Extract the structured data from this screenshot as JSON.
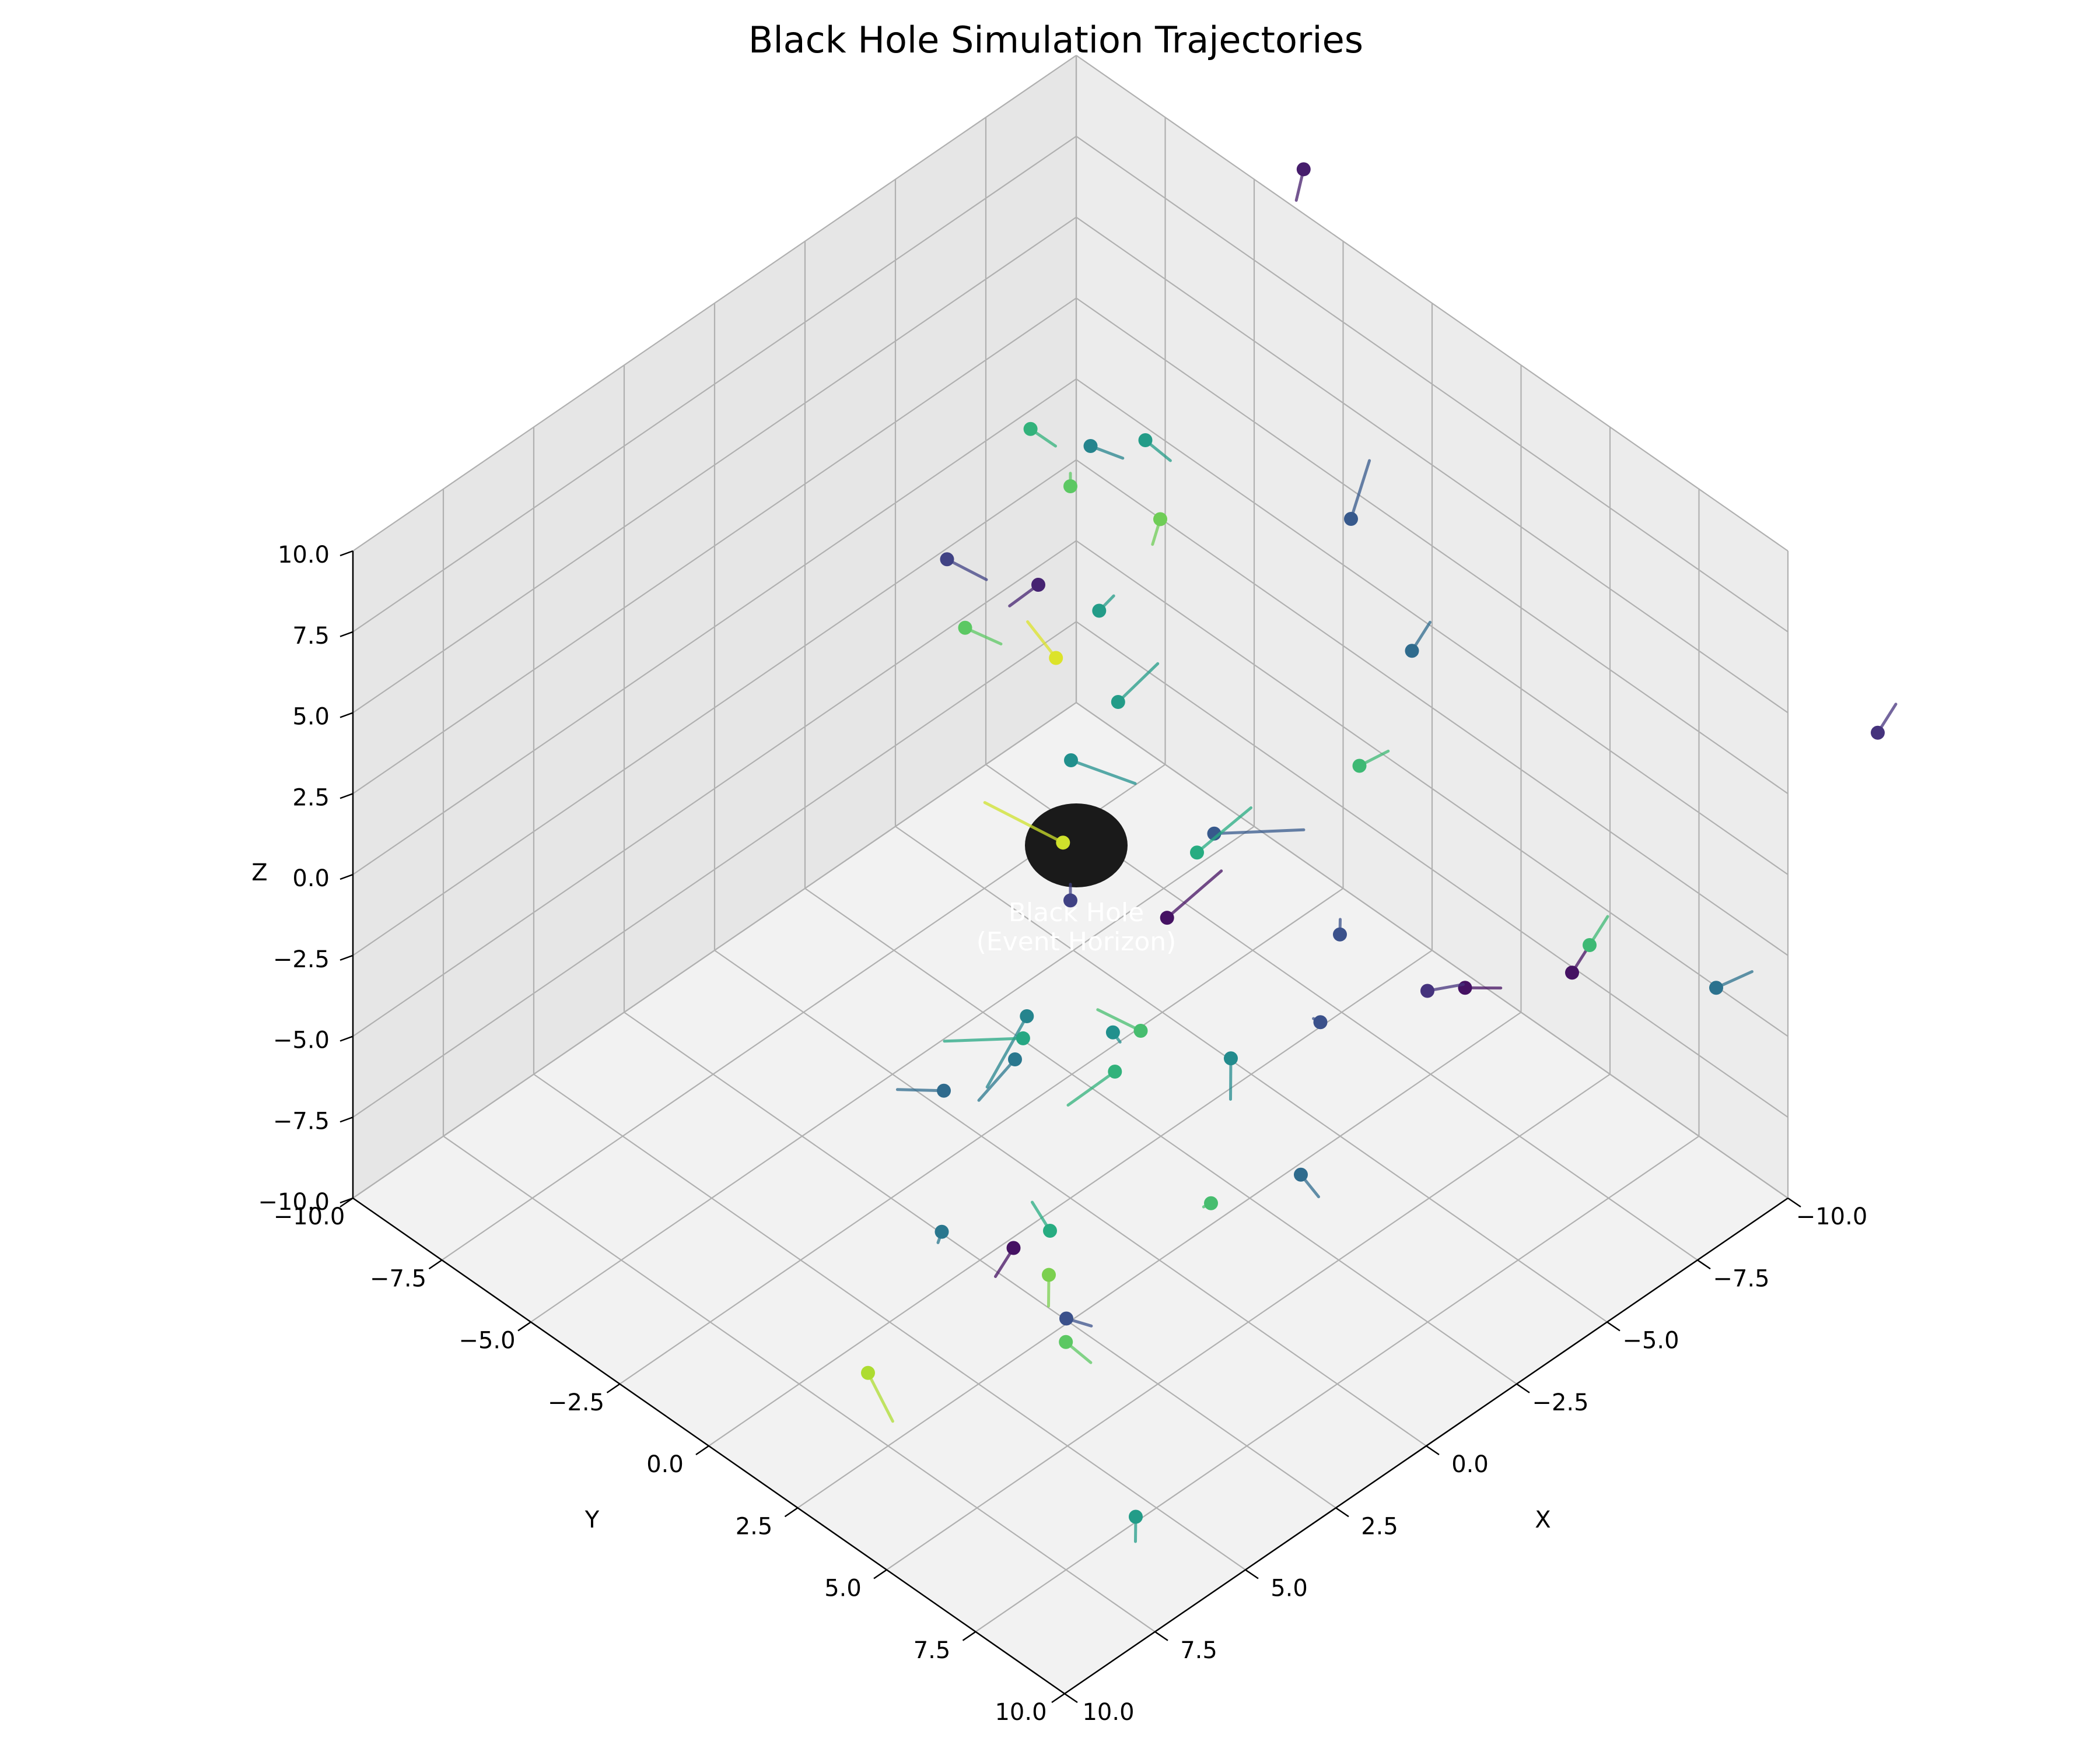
{
  "chart_data": {
    "type": "scatter",
    "projection": "3d",
    "title": "Black Hole Simulation Trajectories",
    "xlabel": "X",
    "ylabel": "Y",
    "zlabel": "Z",
    "xlim": [
      -10,
      10
    ],
    "ylim": [
      -10,
      10
    ],
    "zlim": [
      -10,
      10
    ],
    "x_ticks": [
      "−10.0",
      "−7.5",
      "−5.0",
      "−2.5",
      "0.0",
      "2.5",
      "5.0",
      "7.5",
      "10.0"
    ],
    "y_ticks": [
      "−10.0",
      "−7.5",
      "−5.0",
      "−2.5",
      "0.0",
      "2.5",
      "5.0",
      "7.5",
      "10.0"
    ],
    "z_ticks": [
      "−10.0",
      "−7.5",
      "−5.0",
      "−2.5",
      "0.0",
      "2.5",
      "5.0",
      "7.5",
      "10.0"
    ],
    "grid": true,
    "colormap": "viridis",
    "black_hole": {
      "label_line1": "Black Hole",
      "label_line2": "(Event Horizon)",
      "color": "#1a1a1a",
      "position": [
        0,
        0,
        0
      ]
    },
    "trajectories": [
      {
        "points": [
          [
            -9.4,
            -3.0,
            12.3
          ],
          [
            -9.0,
            -2.8,
            11.8
          ]
        ],
        "color_value": 0.08
      },
      {
        "points": [
          [
            -5.2,
            2.6,
            9.0
          ],
          [
            -6.3,
            2.0,
            9.5
          ]
        ],
        "color_value": 0.28
      },
      {
        "points": [
          [
            -6.5,
            -4.5,
            5.0
          ],
          [
            -6.7,
            -4.0,
            4.6
          ]
        ],
        "color_value": 0.55
      },
      {
        "points": [
          [
            -4.0,
            -3.5,
            7.5
          ],
          [
            -4.4,
            -3.0,
            7.2
          ]
        ],
        "color_value": 0.45
      },
      {
        "points": [
          [
            -2.5,
            -1.2,
            2.5
          ],
          [
            -3.3,
            -0.9,
            3.3
          ]
        ],
        "color_value": 0.55
      },
      {
        "points": [
          [
            -2.0,
            -5.5,
            4.0
          ],
          [
            -2.4,
            -4.8,
            3.6
          ]
        ],
        "color_value": 0.2
      },
      {
        "points": [
          [
            -1.0,
            -1.0,
            2.0
          ],
          [
            -1.3,
            0.5,
            2.2
          ]
        ],
        "color_value": 0.5
      },
      {
        "points": [
          [
            0.0,
            0.0,
            12.0
          ],
          [
            0.0,
            0.0,
            12.4
          ]
        ],
        "color_value": 0.75
      },
      {
        "points": [
          [
            -1.5,
            1.0,
            10.6
          ],
          [
            -0.5,
            1.8,
            11.2
          ]
        ],
        "color_value": 0.78
      },
      {
        "points": [
          [
            -0.5,
            0.3,
            8.0
          ],
          [
            -1.0,
            0.2,
            8.0
          ]
        ],
        "color_value": 0.55
      },
      {
        "points": [
          [
            0.4,
            0.0,
            7.0
          ],
          [
            0.2,
            -1.0,
            7.2
          ]
        ],
        "color_value": 0.95
      },
      {
        "points": [
          [
            0.5,
            0.3,
            1.6
          ],
          [
            0.4,
            -2.0,
            1.0
          ]
        ],
        "color_value": 0.93
      },
      {
        "points": [
          [
            -2.5,
            1.5,
            0.5
          ],
          [
            -3.5,
            3.0,
            1.0
          ]
        ],
        "color_value": 0.28
      },
      {
        "points": [
          [
            0.0,
            0.0,
            -0.8
          ],
          [
            0.0,
            0.0,
            -0.3
          ]
        ],
        "color_value": 0.2
      },
      {
        "points": [
          [
            -1.0,
            1.7,
            -0.8
          ],
          [
            -2.5,
            1.7,
            -0.5
          ]
        ],
        "color_value": 0.05
      },
      {
        "points": [
          [
            0.3,
            1.5,
            -3.5
          ],
          [
            0.2,
            1.6,
            -3.8
          ]
        ],
        "color_value": 0.5
      },
      {
        "points": [
          [
            1.5,
            0.3,
            -3.0
          ],
          [
            2.5,
            0.2,
            -4.5
          ]
        ],
        "color_value": 0.45
      },
      {
        "points": [
          [
            1.8,
            0.5,
            -3.3
          ],
          [
            2.5,
            -1.0,
            -4.0
          ]
        ],
        "color_value": 0.6
      },
      {
        "points": [
          [
            -3.5,
            0.0,
            -2.0
          ],
          [
            -4.5,
            0.5,
            -1.0
          ]
        ],
        "color_value": 0.62
      },
      {
        "points": [
          [
            -4.5,
            3.0,
            -3.0
          ],
          [
            -5.0,
            2.5,
            -3.3
          ]
        ],
        "color_value": 0.25
      },
      {
        "points": [
          [
            -7.5,
            0.5,
            -2.0
          ],
          [
            -8.0,
            0.8,
            -1.7
          ]
        ],
        "color_value": 0.68
      },
      {
        "points": [
          [
            -5.5,
            5.5,
            -3.5
          ],
          [
            -5.8,
            6.2,
            -3.2
          ]
        ],
        "color_value": 0.05
      },
      {
        "points": [
          [
            3.5,
            0.0,
            -4.0
          ],
          [
            3.8,
            -1.0,
            -4.5
          ]
        ],
        "color_value": 0.35
      },
      {
        "points": [
          [
            3.5,
            2.0,
            -1.5
          ],
          [
            4.5,
            2.0,
            -2.0
          ]
        ],
        "color_value": 0.4
      },
      {
        "points": [
          [
            3.0,
            4.3,
            -0.5
          ],
          [
            4.0,
            4.0,
            -1.0
          ]
        ],
        "color_value": 0.65
      },
      {
        "points": [
          [
            1.5,
            3.5,
            -1.0
          ],
          [
            2.0,
            2.8,
            -0.5
          ]
        ],
        "color_value": 0.7
      },
      {
        "points": [
          [
            -1.5,
            5.5,
            -1.5
          ],
          [
            -1.8,
            5.0,
            -2.0
          ]
        ],
        "color_value": 0.25
      },
      {
        "points": [
          [
            -0.5,
            4.0,
            -3.0
          ],
          [
            0.0,
            4.5,
            -3.5
          ]
        ],
        "color_value": 0.48
      },
      {
        "points": [
          [
            4.5,
            4.0,
            -4.5
          ],
          [
            4.5,
            3.5,
            -4.0
          ]
        ],
        "color_value": 0.62
      },
      {
        "points": [
          [
            1.5,
            8.0,
            -2.0
          ],
          [
            1.5,
            8.5,
            -2.3
          ]
        ],
        "color_value": 0.35
      },
      {
        "points": [
          [
            3.0,
            7.0,
            -2.5
          ],
          [
            3.5,
            7.3,
            -2.0
          ]
        ],
        "color_value": 0.7
      },
      {
        "points": [
          [
            6.0,
            4.5,
            -3.5
          ],
          [
            6.5,
            4.5,
            -4.0
          ]
        ],
        "color_value": 0.05
      },
      {
        "points": [
          [
            7.0,
            3.5,
            -3.0
          ],
          [
            7.4,
            3.8,
            -2.8
          ]
        ],
        "color_value": 0.4
      },
      {
        "points": [
          [
            6.5,
            6.0,
            -2.8
          ],
          [
            7.0,
            6.5,
            -3.0
          ]
        ],
        "color_value": 0.8
      },
      {
        "points": [
          [
            7.0,
            7.0,
            -3.0
          ],
          [
            6.8,
            7.5,
            -3.0
          ]
        ],
        "color_value": 0.25
      },
      {
        "points": [
          [
            7.8,
            7.8,
            -2.5
          ],
          [
            7.8,
            8.5,
            -2.6
          ]
        ],
        "color_value": 0.75
      },
      {
        "points": [
          [
            11.5,
            6.0,
            -2.0
          ],
          [
            11.8,
            7.0,
            -2.5
          ]
        ],
        "color_value": 0.88
      },
      {
        "points": [
          [
            10.0,
            12.0,
            -3.0
          ],
          [
            10.5,
            12.5,
            -3.0
          ]
        ],
        "color_value": 0.55
      },
      {
        "points": [
          [
            -9.0,
            9.0,
            -3.5
          ],
          [
            -9.5,
            9.5,
            -3.0
          ]
        ],
        "color_value": 0.38
      },
      {
        "points": [
          [
            -11.5,
            11.0,
            4.0
          ],
          [
            -12.0,
            11.0,
            4.5
          ]
        ],
        "color_value": 0.15
      },
      {
        "points": [
          [
            -6.0,
            8.0,
            -1.5
          ],
          [
            -6.5,
            8.0,
            -1.0
          ]
        ],
        "color_value": 0.05
      },
      {
        "points": [
          [
            -5.5,
            9.0,
            0.5
          ],
          [
            -6.0,
            9.0,
            1.0
          ]
        ],
        "color_value": 0.68
      },
      {
        "points": [
          [
            -2.0,
            8.0,
            1.0
          ],
          [
            -2.5,
            8.5,
            1.2
          ]
        ],
        "color_value": 0.15
      },
      {
        "points": [
          [
            -6.0,
            3.5,
            5.0
          ],
          [
            -6.5,
            3.5,
            5.5
          ]
        ],
        "color_value": 0.35
      },
      {
        "points": [
          [
            -4.8,
            -6.0,
            5.5
          ],
          [
            -5.0,
            -5.5,
            5.2
          ]
        ],
        "color_value": 0.65
      },
      {
        "points": [
          [
            -2.5,
            -5.5,
            1.5
          ],
          [
            -3.0,
            -5.0,
            1.0
          ]
        ],
        "color_value": 0.75
      },
      {
        "points": [
          [
            -6.0,
            -7.0,
            -1.0
          ],
          [
            -5.5,
            -7.3,
            -1.5
          ]
        ],
        "color_value": 0.1
      }
    ]
  }
}
